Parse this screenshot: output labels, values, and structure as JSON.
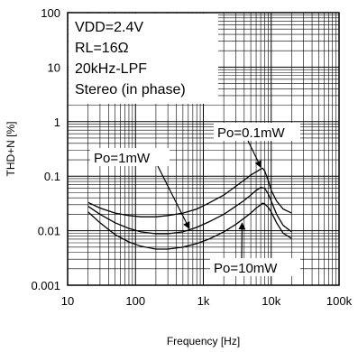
{
  "chart_data": {
    "type": "line",
    "title": "",
    "xlabel": "Frequency [Hz]",
    "ylabel": "THD+N [%]",
    "x_scale": "log",
    "y_scale": "log",
    "xlim": [
      10,
      100000
    ],
    "ylim": [
      0.001,
      100
    ],
    "x_ticks": [
      {
        "value": 10,
        "label": "10"
      },
      {
        "value": 100,
        "label": "100"
      },
      {
        "value": 1000,
        "label": "1k"
      },
      {
        "value": 10000,
        "label": "10k"
      },
      {
        "value": 100000,
        "label": "100k"
      }
    ],
    "y_ticks": [
      {
        "value": 0.001,
        "label": "0.001"
      },
      {
        "value": 0.01,
        "label": "0.01"
      },
      {
        "value": 0.1,
        "label": "0.1"
      },
      {
        "value": 1,
        "label": "1"
      },
      {
        "value": 10,
        "label": "10"
      },
      {
        "value": 100,
        "label": "100"
      }
    ],
    "grid": true,
    "conditions": [
      "VDD=2.4V",
      "RL=16Ω",
      "20kHz-LPF",
      "Stereo (in phase)"
    ],
    "series": [
      {
        "name": "Po=0.1mW",
        "x": [
          20,
          30,
          50,
          80,
          120,
          200,
          300,
          500,
          800,
          1200,
          2000,
          3000,
          4000,
          5000,
          6000,
          7000,
          7500,
          8000,
          9000,
          10000,
          12000,
          15000,
          20000
        ],
        "y": [
          0.033,
          0.026,
          0.021,
          0.019,
          0.018,
          0.018,
          0.019,
          0.021,
          0.025,
          0.032,
          0.045,
          0.065,
          0.085,
          0.105,
          0.12,
          0.135,
          0.14,
          0.125,
          0.085,
          0.055,
          0.035,
          0.025,
          0.021
        ]
      },
      {
        "name": "Po=1mW",
        "x": [
          20,
          30,
          50,
          80,
          120,
          200,
          300,
          500,
          800,
          1200,
          2000,
          3000,
          4000,
          5000,
          6000,
          7000,
          8000,
          9000,
          10000,
          12000,
          15000,
          20000
        ],
        "y": [
          0.028,
          0.02,
          0.014,
          0.011,
          0.0095,
          0.0088,
          0.0088,
          0.0095,
          0.0115,
          0.0145,
          0.02,
          0.028,
          0.036,
          0.045,
          0.055,
          0.062,
          0.06,
          0.048,
          0.035,
          0.02,
          0.0125,
          0.0095
        ]
      },
      {
        "name": "Po=10mW",
        "x": [
          20,
          30,
          50,
          80,
          120,
          200,
          300,
          500,
          800,
          1200,
          2000,
          3000,
          4000,
          5000,
          6000,
          7000,
          7500,
          8000,
          9000,
          10000,
          12000,
          15000,
          20000
        ],
        "y": [
          0.022,
          0.014,
          0.0085,
          0.0062,
          0.0052,
          0.0046,
          0.0046,
          0.005,
          0.0058,
          0.007,
          0.0095,
          0.013,
          0.017,
          0.021,
          0.026,
          0.03,
          0.032,
          0.031,
          0.027,
          0.022,
          0.014,
          0.009,
          0.0072
        ]
      }
    ],
    "annotations": [
      {
        "text": "Po=0.1mW",
        "target_series": "Po=0.1mW"
      },
      {
        "text": "Po=1mW",
        "target_series": "Po=1mW"
      },
      {
        "text": "Po=10mW",
        "target_series": "Po=10mW"
      }
    ]
  }
}
